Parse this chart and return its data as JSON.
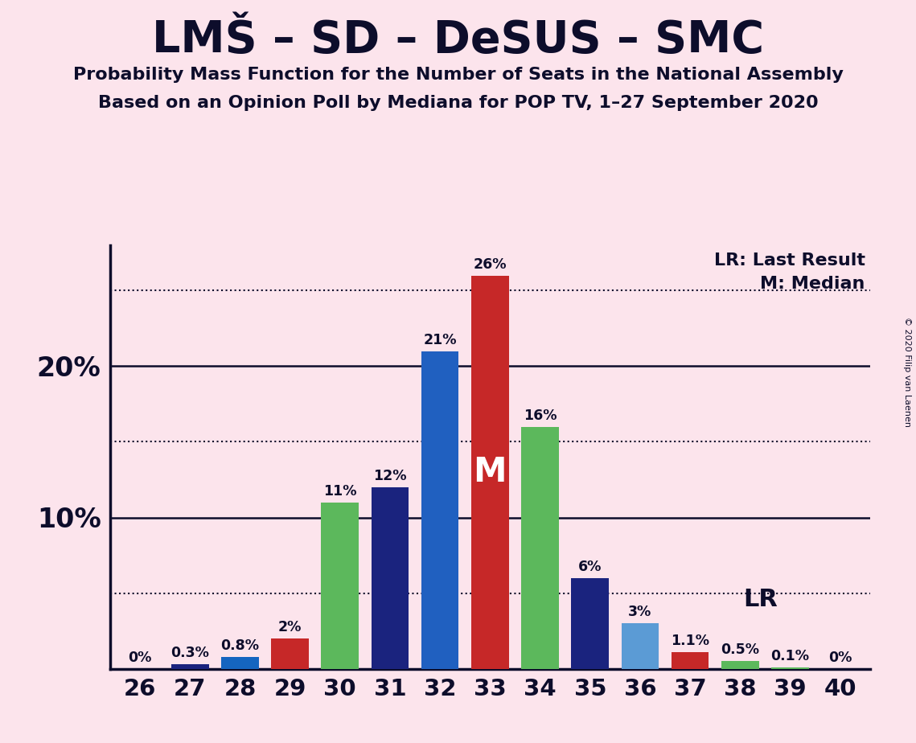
{
  "title": "LMŠ – SD – DeSUS – SMC",
  "subtitle1": "Probability Mass Function for the Number of Seats in the National Assembly",
  "subtitle2": "Based on an Opinion Poll by Mediana for POP TV, 1–27 September 2020",
  "copyright": "© 2020 Filip van Laenen",
  "seats": [
    26,
    27,
    28,
    29,
    30,
    31,
    32,
    33,
    34,
    35,
    36,
    37,
    38,
    39,
    40
  ],
  "probabilities": [
    0.0,
    0.3,
    0.8,
    2.0,
    11.0,
    12.0,
    21.0,
    26.0,
    16.0,
    6.0,
    3.0,
    1.1,
    0.5,
    0.1,
    0.0
  ],
  "labels": [
    "0%",
    "0.3%",
    "0.8%",
    "2%",
    "11%",
    "12%",
    "21%",
    "26%",
    "16%",
    "6%",
    "3%",
    "1.1%",
    "0.5%",
    "0.1%",
    "0%"
  ],
  "bar_colors": [
    "#1a237e",
    "#1a237e",
    "#1565c0",
    "#c62828",
    "#5cb85c",
    "#1a237e",
    "#2060c0",
    "#c62828",
    "#5cb85c",
    "#1a237e",
    "#5b9bd5",
    "#c62828",
    "#5cb85c",
    "#5cb85c",
    "#5cb85c"
  ],
  "median_seat": 33,
  "lr_seat": 37,
  "background_color": "#fce4ec",
  "text_color": "#0d0d2b",
  "ylim": [
    0,
    28
  ],
  "dotted_lines": [
    5,
    15,
    25
  ],
  "solid_lines": [
    10,
    20
  ]
}
